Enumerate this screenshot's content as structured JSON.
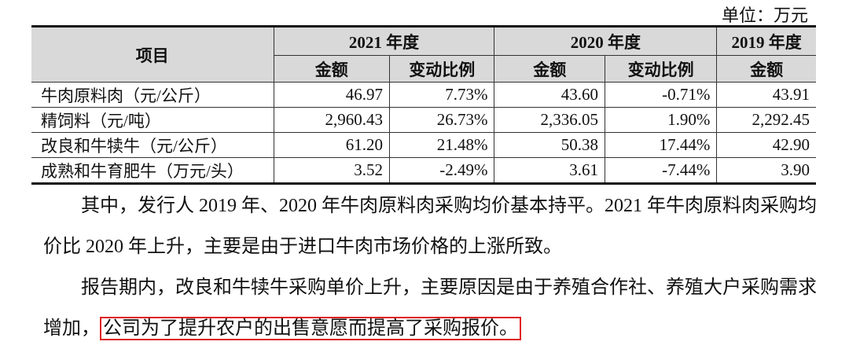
{
  "unit": "单位：万元",
  "table": {
    "header": {
      "item": "项目",
      "years": [
        "2021 年度",
        "2020 年度",
        "2019 年度"
      ],
      "subs": [
        "金额",
        "变动比例",
        "金额",
        "变动比例",
        "金额"
      ]
    },
    "rows": [
      [
        "牛肉原料肉（元/公斤）",
        "46.97",
        "7.73%",
        "43.60",
        "-0.71%",
        "43.91"
      ],
      [
        "精饲料（元/吨）",
        "2,960.43",
        "26.73%",
        "2,336.05",
        "1.90%",
        "2,292.45"
      ],
      [
        "改良和牛犊牛（元/公斤）",
        "61.20",
        "21.48%",
        "50.38",
        "17.44%",
        "42.90"
      ],
      [
        "成熟和牛育肥牛（万元/头）",
        "3.52",
        "-2.49%",
        "3.61",
        "-7.44%",
        "3.90"
      ]
    ]
  },
  "paragraphs": [
    {
      "text": "其中，发行人 2019 年、2020 年牛肉原料肉采购均价基本持平。2021 年牛肉原料肉采购均价比 2020 年上升，主要是由于进口牛肉市场价格的上涨所致。"
    },
    {
      "text": "报告期内，改良和牛犊牛采购单价上升，主要原因是由于养殖合作社、养殖大户采购需求增加，",
      "highlight": "公司为了提升农户的出售意愿而提高了采购报价。"
    }
  ]
}
